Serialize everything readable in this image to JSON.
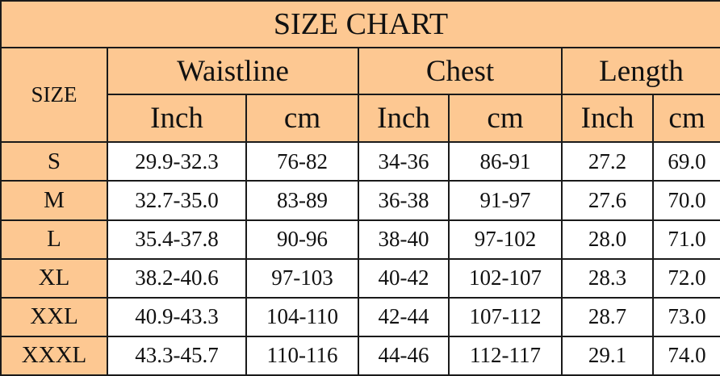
{
  "title": "SIZE CHART",
  "size_header": "SIZE",
  "groups": [
    {
      "label": "Waistline",
      "units": [
        "Inch",
        "cm"
      ]
    },
    {
      "label": "Chest",
      "units": [
        "Inch",
        "cm"
      ]
    },
    {
      "label": "Length",
      "units": [
        "Inch",
        "cm"
      ]
    }
  ],
  "rows": [
    {
      "size": "S",
      "waist_inch": "29.9-32.3",
      "waist_cm": "76-82",
      "chest_inch": "34-36",
      "chest_cm": "86-91",
      "length_inch": "27.2",
      "length_cm": "69.0"
    },
    {
      "size": "M",
      "waist_inch": "32.7-35.0",
      "waist_cm": "83-89",
      "chest_inch": "36-38",
      "chest_cm": "91-97",
      "length_inch": "27.6",
      "length_cm": "70.0"
    },
    {
      "size": "L",
      "waist_inch": "35.4-37.8",
      "waist_cm": "90-96",
      "chest_inch": "38-40",
      "chest_cm": "97-102",
      "length_inch": "28.0",
      "length_cm": "71.0"
    },
    {
      "size": "XL",
      "waist_inch": "38.2-40.6",
      "waist_cm": "97-103",
      "chest_inch": "40-42",
      "chest_cm": "102-107",
      "length_inch": "28.3",
      "length_cm": "72.0"
    },
    {
      "size": "XXL",
      "waist_inch": "40.9-43.3",
      "waist_cm": "104-110",
      "chest_inch": "42-44",
      "chest_cm": "107-112",
      "length_inch": "28.7",
      "length_cm": "73.0"
    },
    {
      "size": "XXXL",
      "waist_inch": "43.3-45.7",
      "waist_cm": "110-116",
      "chest_inch": "44-46",
      "chest_cm": "112-117",
      "length_inch": "29.1",
      "length_cm": "74.0"
    }
  ],
  "colors": {
    "header_fill": "#fdc892",
    "border": "#1a1a1a",
    "body_fill": "#ffffff"
  }
}
